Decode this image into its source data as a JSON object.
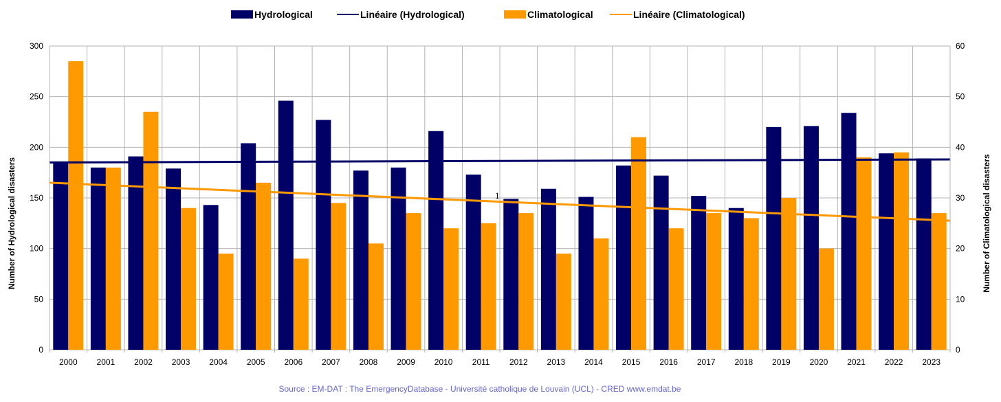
{
  "chart_data": {
    "type": "bar",
    "categories": [
      "2000",
      "2001",
      "2002",
      "2003",
      "2004",
      "2005",
      "2006",
      "2007",
      "2008",
      "2009",
      "2010",
      "2011",
      "2012",
      "2013",
      "2014",
      "2015",
      "2016",
      "2017",
      "2018",
      "2019",
      "2020",
      "2021",
      "2022",
      "2023"
    ],
    "series": [
      {
        "name": "Hydrological",
        "axis": "left",
        "color": "#000066",
        "values": [
          185,
          180,
          191,
          179,
          143,
          204,
          246,
          227,
          177,
          180,
          216,
          173,
          149,
          159,
          151,
          182,
          172,
          152,
          140,
          220,
          221,
          234,
          194,
          189
        ]
      },
      {
        "name": "Climatological",
        "axis": "right",
        "color": "#ff9900",
        "values": [
          57,
          36,
          47,
          28,
          19,
          33,
          18,
          29,
          21,
          27,
          24,
          25,
          27,
          19,
          22,
          42,
          24,
          27,
          26,
          30,
          20,
          38,
          39,
          27
        ]
      }
    ],
    "trendlines": [
      {
        "name": "Linéaire (Hydrological)",
        "axis": "left",
        "color": "#000066",
        "start": 185,
        "end": 188
      },
      {
        "name": "Linéaire (Climatological)",
        "axis": "right",
        "color": "#ff9900",
        "start": 33,
        "end": 25.5
      }
    ],
    "ylabel": "Number of Hydrological disasters",
    "y2label": "Number of Climatological disasters",
    "ylim": [
      0,
      300
    ],
    "y2lim": [
      0,
      60
    ],
    "yticks": [
      0,
      50,
      100,
      150,
      200,
      250,
      300
    ],
    "y2ticks": [
      0,
      10,
      20,
      30,
      40,
      50,
      60
    ],
    "legend_position": "top",
    "grid": true,
    "annotation": "1",
    "source": "Source : EM-DAT : The EmergencyDatabase - Université catholique de Louvain (UCL) - CRED  www.emdat.be"
  },
  "legend": [
    {
      "label": "Hydrological",
      "kind": "box",
      "color": "#000066"
    },
    {
      "label": "Linéaire (Hydrological)",
      "kind": "line",
      "color": "#000066"
    },
    {
      "label": "Climatological",
      "kind": "box",
      "color": "#ff9900"
    },
    {
      "label": "Linéaire (Climatological)",
      "kind": "line",
      "color": "#ff9900"
    }
  ]
}
